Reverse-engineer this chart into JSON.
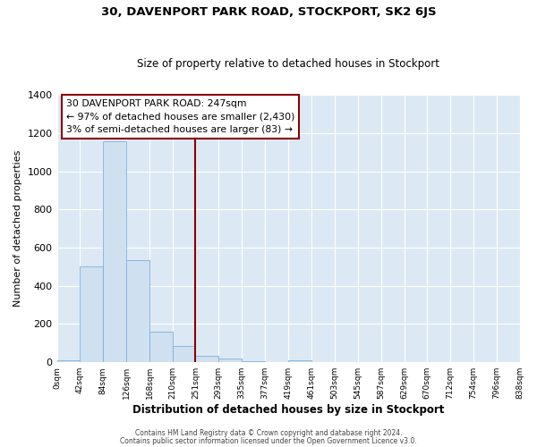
{
  "title": "30, DAVENPORT PARK ROAD, STOCKPORT, SK2 6JS",
  "subtitle": "Size of property relative to detached houses in Stockport",
  "bar_color": "#cfe0f0",
  "bar_edge_color": "#7fb0d8",
  "plot_bg_color": "#dce9f5",
  "fig_bg_color": "#ffffff",
  "bin_edges": [
    0,
    42,
    84,
    126,
    168,
    210,
    251,
    293,
    335,
    377,
    419,
    461,
    503,
    545,
    587,
    629,
    670,
    712,
    754,
    796,
    838
  ],
  "bar_heights": [
    10,
    500,
    1155,
    535,
    160,
    85,
    35,
    20,
    5,
    0,
    10,
    0,
    0,
    0,
    0,
    0,
    0,
    0,
    0,
    0
  ],
  "tick_labels": [
    "0sqm",
    "42sqm",
    "84sqm",
    "126sqm",
    "168sqm",
    "210sqm",
    "251sqm",
    "293sqm",
    "335sqm",
    "377sqm",
    "419sqm",
    "461sqm",
    "503sqm",
    "545sqm",
    "587sqm",
    "629sqm",
    "670sqm",
    "712sqm",
    "754sqm",
    "796sqm",
    "838sqm"
  ],
  "xlabel": "Distribution of detached houses by size in Stockport",
  "ylabel": "Number of detached properties",
  "ylim": [
    0,
    1400
  ],
  "yticks": [
    0,
    200,
    400,
    600,
    800,
    1000,
    1200,
    1400
  ],
  "vline_x": 251,
  "vline_color": "#8b0000",
  "annotation_title": "30 DAVENPORT PARK ROAD: 247sqm",
  "annotation_line1": "← 97% of detached houses are smaller (2,430)",
  "annotation_line2": "3% of semi-detached houses are larger (83) →",
  "annotation_box_facecolor": "#ffffff",
  "annotation_box_edgecolor": "#8b0000",
  "grid_color": "#ffffff",
  "footer_line1": "Contains HM Land Registry data © Crown copyright and database right 2024.",
  "footer_line2": "Contains public sector information licensed under the Open Government Licence v3.0."
}
